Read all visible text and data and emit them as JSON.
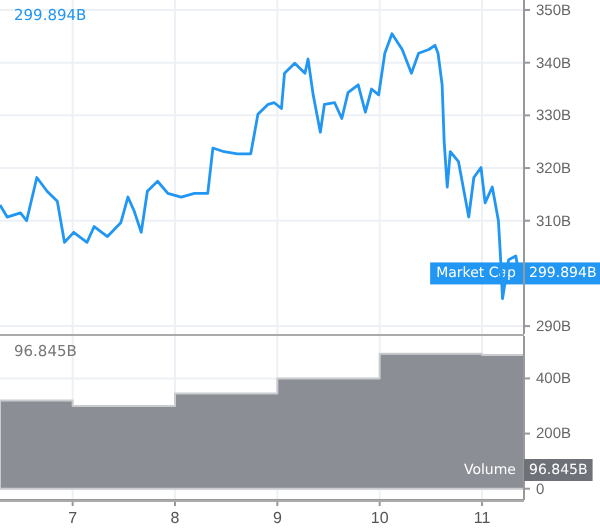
{
  "chart_data": [
    {
      "type": "line",
      "color": "#2196f3",
      "x": [
        6.29,
        6.36,
        6.49,
        6.55,
        6.65,
        6.75,
        6.85,
        6.92,
        7.01,
        7.14,
        7.21,
        7.34,
        7.47,
        7.54,
        7.6,
        7.67,
        7.73,
        7.83,
        7.93,
        8.06,
        8.19,
        8.32,
        8.37,
        8.48,
        8.61,
        8.74,
        8.81,
        8.91,
        8.97,
        9.04,
        9.07,
        9.17,
        9.27,
        9.3,
        9.35,
        9.42,
        9.46,
        9.56,
        9.63,
        9.69,
        9.79,
        9.86,
        9.92,
        9.99,
        10.05,
        10.12,
        10.22,
        10.31,
        10.38,
        10.48,
        10.54,
        10.57,
        10.61,
        10.63,
        10.66,
        10.69,
        10.77,
        10.87,
        10.92,
        10.99,
        11.03,
        11.1,
        11.16,
        11.18,
        11.2,
        11.26,
        11.33,
        11.36
      ],
      "values": [
        313,
        310.7,
        311.5,
        310,
        318.2,
        315.6,
        313.7,
        305.9,
        307.8,
        305.9,
        308.9,
        307,
        309.6,
        314.5,
        311.9,
        307.8,
        315.6,
        317.5,
        315.2,
        314.5,
        315.2,
        315.2,
        323.8,
        323.1,
        322.7,
        322.7,
        330.2,
        332.1,
        332.4,
        331.3,
        338,
        339.9,
        338,
        340.7,
        333.9,
        326.8,
        332.1,
        332.4,
        329.4,
        334.3,
        335.8,
        330.6,
        335,
        333.9,
        341.8,
        345.5,
        342.5,
        338,
        341.8,
        342.5,
        343.3,
        341.8,
        335.8,
        325,
        316.4,
        323.1,
        321.2,
        310.7,
        318.2,
        320.1,
        313.4,
        316.4,
        310,
        303.3,
        295.2,
        302.6,
        303.3,
        300
      ],
      "xlim": [
        6.29,
        11.41
      ],
      "xticks": [
        7,
        8,
        9,
        10,
        11
      ],
      "ylim": [
        288.5,
        351.9
      ],
      "yticks": [
        {
          "value": 290,
          "label": "290B"
        },
        {
          "value": 310,
          "label": "310B"
        },
        {
          "value": 320,
          "label": "320B"
        },
        {
          "value": 330,
          "label": "330B"
        },
        {
          "value": 340,
          "label": "340B"
        },
        {
          "value": 350,
          "label": "350B"
        }
      ],
      "grid": true,
      "tick_labels": "y",
      "annotations": [
        "299.894B",
        "Market Cap",
        "299.894B"
      ]
    },
    {
      "type": "area",
      "color": "#8b8e95",
      "x": [
        6.29,
        7,
        7,
        8,
        8,
        9,
        9,
        10,
        10,
        11,
        11,
        11.41
      ],
      "values": [
        320,
        320,
        300,
        300,
        345,
        345,
        400,
        400,
        490,
        490,
        485,
        485
      ],
      "xlim": [
        6.29,
        11.41
      ],
      "xticks": [
        7,
        8,
        9,
        10,
        11
      ],
      "ylim": [
        -41,
        554
      ],
      "yticks": [
        0,
        {
          "value": 200,
          "label": "200B"
        },
        {
          "value": 400,
          "label": "400B"
        }
      ],
      "grid": true,
      "annotations": [
        "96.845B",
        "Volume",
        "96.845B"
      ]
    }
  ]
}
